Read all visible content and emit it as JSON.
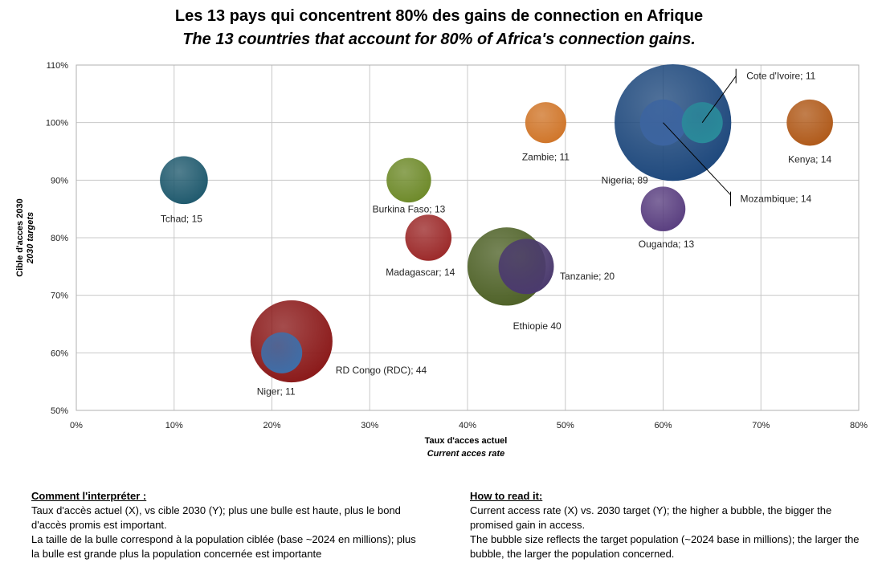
{
  "title_fr": "Les 13 pays qui concentrent 80% des gains de connection en Afrique",
  "title_en": "The 13 countries that account for 80% of Africa's connection gains.",
  "chart_data": {
    "type": "bubble",
    "xlabel": "Taux d'acces actuel",
    "xlabel_en": "Current acces rate",
    "ylabel": "Cible d'acces 2030",
    "ylabel_en": "2030 targets",
    "xlim": [
      0,
      80
    ],
    "ylim": [
      50,
      110
    ],
    "x_ticks": [
      "0%",
      "10%",
      "20%",
      "30%",
      "40%",
      "50%",
      "60%",
      "70%",
      "80%"
    ],
    "y_ticks": [
      "50%",
      "60%",
      "70%",
      "80%",
      "90%",
      "100%",
      "110%"
    ],
    "grid": true,
    "points": [
      {
        "label": "Nigeria; 89",
        "x": 61,
        "y": 100,
        "size": 89,
        "color": "#1f497d"
      },
      {
        "label": "Ethiopie 40",
        "x": 44,
        "y": 75,
        "size": 40,
        "color": "#4f6228"
      },
      {
        "label": "RD Congo (RDC); 44",
        "x": 22,
        "y": 62,
        "size": 44,
        "color": "#8b1a1a"
      },
      {
        "label": "Tanzanie; 20",
        "x": 46,
        "y": 75,
        "size": 20,
        "color": "#4b3a6e"
      },
      {
        "label": "Tchad; 15",
        "x": 11,
        "y": 90,
        "size": 15,
        "color": "#205a6e"
      },
      {
        "label": "Kenya; 14",
        "x": 75,
        "y": 100,
        "size": 14,
        "color": "#b05a1a"
      },
      {
        "label": "Madagascar; 14",
        "x": 36,
        "y": 80,
        "size": 14,
        "color": "#9c2a2a"
      },
      {
        "label": "Mozambique; 14",
        "x": 60,
        "y": 100,
        "size": 14,
        "color": "#3c64a0"
      },
      {
        "label": "Burkina Faso; 13",
        "x": 34,
        "y": 90,
        "size": 13,
        "color": "#6e8a2a"
      },
      {
        "label": "Ouganda; 13",
        "x": 60,
        "y": 85,
        "size": 13,
        "color": "#5a3f80"
      },
      {
        "label": "Zambie; 11",
        "x": 48,
        "y": 100,
        "size": 11,
        "color": "#d0762a"
      },
      {
        "label": "Niger; 11",
        "x": 21,
        "y": 60,
        "size": 11,
        "color": "#3f6ea8"
      },
      {
        "label": "Cote d'Ivoire; 11",
        "x": 64,
        "y": 100,
        "size": 11,
        "color": "#2a8a9a"
      }
    ]
  },
  "note_fr": {
    "heading": "Comment l'interpréter :",
    "lines": [
      "Taux d'accès actuel (X), vs cible 2030 (Y); plus une bulle est haute, plus le bond d'accès promis est important.",
      "La taille de la bulle correspond à la population ciblée (base ~2024 en millions); plus la bulle est grande plus la population concernée est importante"
    ]
  },
  "note_en": {
    "heading": "How to read it:",
    "lines": [
      "Current access rate (X) vs. 2030 target (Y); the higher a bubble, the bigger the promised gain in access.",
      "The bubble size reflects the target population (~2024 base in millions); the larger the bubble, the larger the population concerned."
    ]
  }
}
